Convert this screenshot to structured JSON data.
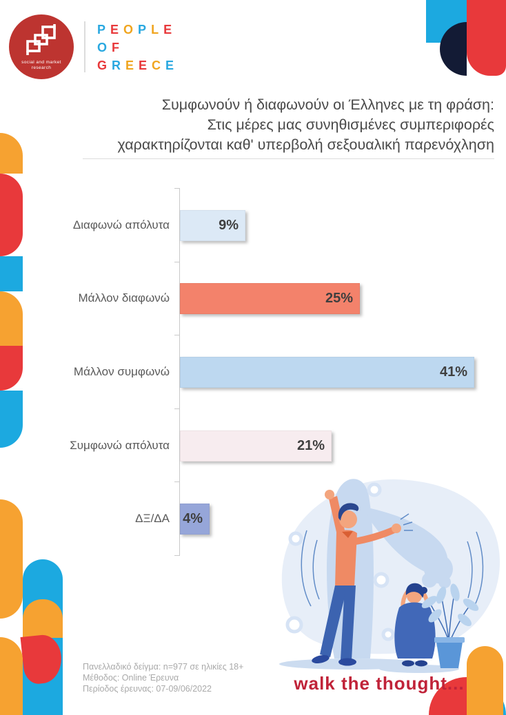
{
  "colors": {
    "accent_red": "#e8393b",
    "accent_cyan": "#1ca9e0",
    "accent_orange": "#f6a231",
    "accent_navy": "#131b35",
    "logo_red": "#bd3430",
    "tagline_red": "#c02339"
  },
  "brand": {
    "logo_monogram": "ged",
    "logo_tagline": [
      "social and market",
      "research"
    ],
    "wordmark": [
      {
        "word": "PEOPLE",
        "colors": [
          "#29a8e0",
          "#e8393b",
          "#f0a51f",
          "#29a8e0",
          "#f0a51f",
          "#e8393b"
        ]
      },
      {
        "word": "OF",
        "colors": [
          "#29a8e0",
          "#e8393b"
        ]
      },
      {
        "word": "GREECE",
        "colors": [
          "#e8393b",
          "#29a8e0",
          "#f0a51f",
          "#e8393b",
          "#f0a51f",
          "#29a8e0"
        ]
      }
    ]
  },
  "title": {
    "lines": [
      "Συμφωνούν ή διαφωνούν οι Έλληνες με τη φράση:",
      "Στις μέρες μας συνηθισμένες συμπεριφορές",
      "χαρακτηρίζονται καθ' υπερβολή σεξουαλική παρενόχληση"
    ]
  },
  "chart_data": {
    "type": "bar",
    "orientation": "horizontal",
    "title": "Συμφωνούν ή διαφωνούν οι Έλληνες με τη φράση: Στις μέρες μας συνηθισμένες συμπεριφορές χαρακτηρίζονται καθ' υπερβολή σεξουαλική παρενόχληση",
    "categories": [
      "Διαφωνώ απόλυτα",
      "Μάλλον διαφωνώ",
      "Μάλλον συμφωνώ",
      "Συμφωνώ απόλυτα",
      "ΔΞ/ΔΑ"
    ],
    "values": [
      9,
      25,
      41,
      21,
      4
    ],
    "unit": "%",
    "value_labels": [
      "9%",
      "25%",
      "41%",
      "21%",
      "4%"
    ],
    "bar_colors": [
      "#dce9f6",
      "#f3826b",
      "#bdd8f0",
      "#f7ecef",
      "#96a6d9"
    ],
    "xlim": [
      0,
      41
    ],
    "grid": false,
    "legend": false
  },
  "footer": {
    "lines": [
      "Πανελλαδικό δείγμα: n=977 σε ηλικίες 18+",
      "Μέθοδος: Online Έρευνα",
      "Περίοδος έρευνας: 07-09/06/2022"
    ],
    "tagline": "walk the thought..."
  }
}
